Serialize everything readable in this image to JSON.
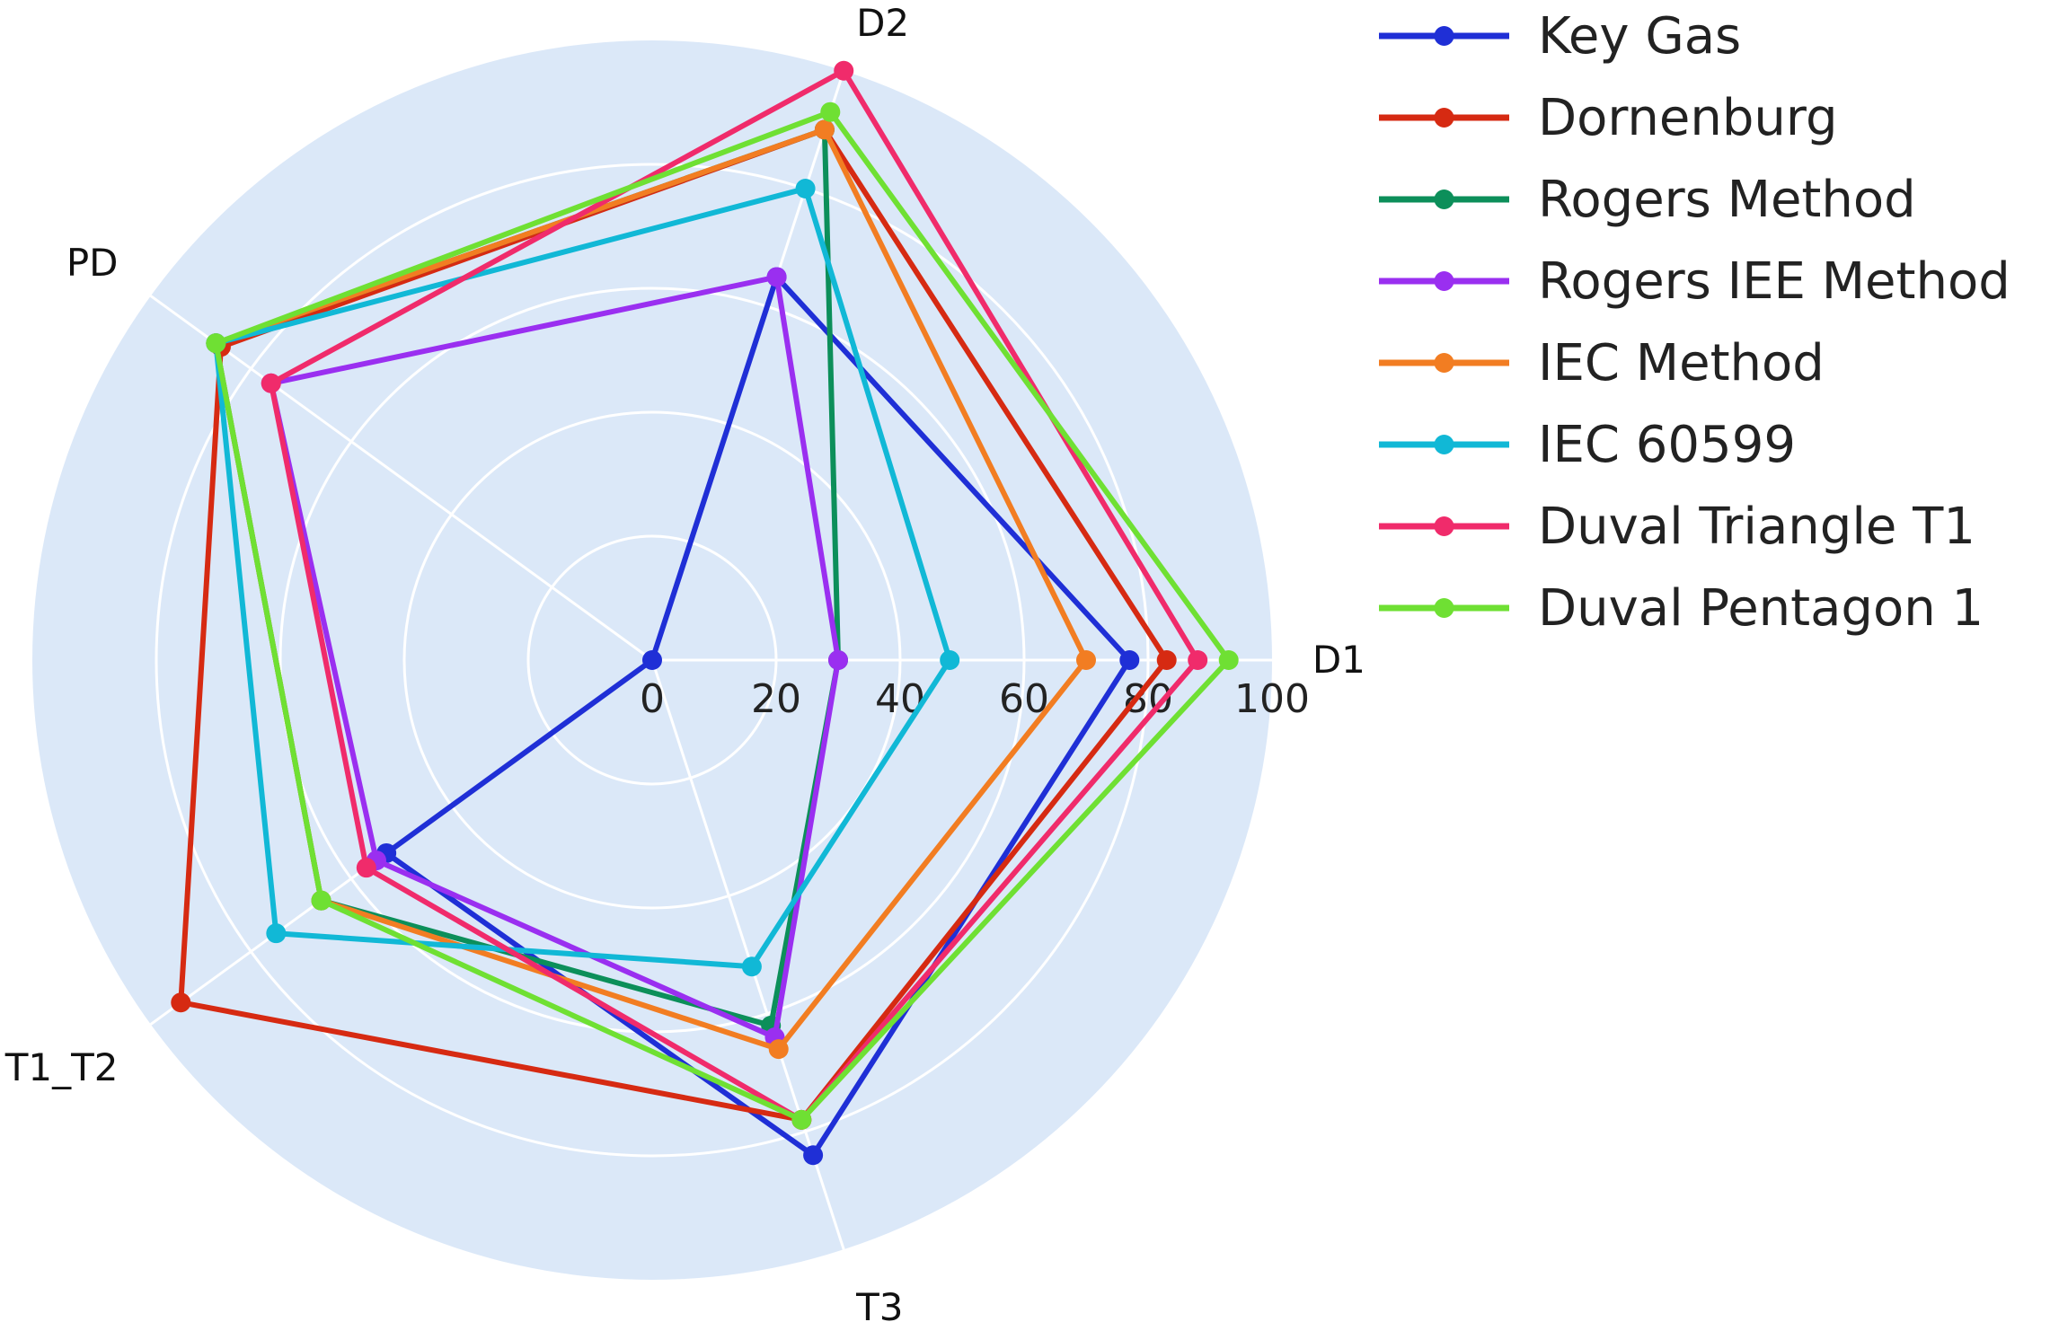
{
  "chart_data": {
    "type": "radar",
    "axes": [
      "D1",
      "D2",
      "PD",
      "T1_T2",
      "T3"
    ],
    "radial_range": [
      0,
      100
    ],
    "radial_ticks": [
      0,
      20,
      40,
      60,
      80,
      100
    ],
    "grid": true,
    "legend_position": "top-right",
    "series": [
      {
        "name": "Key Gas",
        "color": "#1f2fd6",
        "values": [
          77,
          65,
          0,
          53,
          84
        ]
      },
      {
        "name": "Dornenburg",
        "color": "#d62a12",
        "values": [
          83,
          90,
          86,
          94,
          78
        ]
      },
      {
        "name": "Rogers Method",
        "color": "#0c8f5a",
        "values": [
          30,
          90,
          87,
          66,
          62
        ]
      },
      {
        "name": "Rogers IEE Method",
        "color": "#9a2ff0",
        "values": [
          30,
          65,
          76,
          55,
          64
        ]
      },
      {
        "name": "IEC Method",
        "color": "#f27d22",
        "values": [
          70,
          90,
          87,
          66,
          66
        ]
      },
      {
        "name": "IEC 60599",
        "color": "#11b8d6",
        "values": [
          48,
          80,
          87,
          75,
          52
        ]
      },
      {
        "name": "Duval Triangle T1",
        "color": "#f02b6b",
        "values": [
          88,
          100,
          76,
          57,
          78
        ]
      },
      {
        "name": "Duval Pentagon 1",
        "color": "#6fe033",
        "values": [
          93,
          93,
          87,
          66,
          78
        ]
      }
    ]
  }
}
